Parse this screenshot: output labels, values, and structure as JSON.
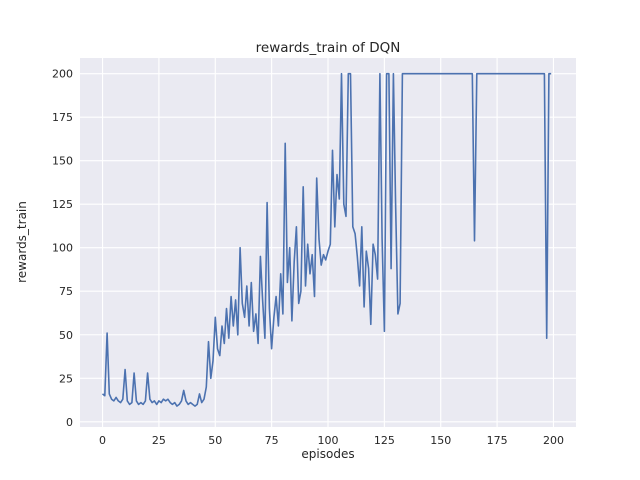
{
  "chart_data": {
    "type": "line",
    "title": "rewards_train of DQN",
    "xlabel": "episodes",
    "ylabel": "rewards_train",
    "x_start": 0,
    "x_step": 1,
    "x_ticks": [
      0,
      25,
      50,
      75,
      100,
      125,
      150,
      175,
      200
    ],
    "y_ticks": [
      0,
      25,
      50,
      75,
      100,
      125,
      150,
      175,
      200
    ],
    "xlim": [
      -10,
      210
    ],
    "ylim": [
      -3,
      209
    ],
    "grid": true,
    "legend": false,
    "style": "seaborn-darkgrid",
    "colors": {
      "line": "#4c72b0",
      "axes_bg": "#eaeaf2",
      "grid": "#ffffff",
      "fig_bg": "#ffffff",
      "text": "#262626"
    },
    "values": [
      16,
      15,
      51,
      16,
      13,
      12,
      14,
      12,
      11,
      13,
      30,
      12,
      10,
      11,
      28,
      12,
      10,
      11,
      10,
      12,
      28,
      13,
      11,
      12,
      10,
      12,
      11,
      13,
      12,
      13,
      11,
      10,
      11,
      9,
      10,
      12,
      18,
      12,
      10,
      11,
      10,
      9,
      10,
      16,
      11,
      13,
      20,
      46,
      25,
      35,
      60,
      42,
      38,
      55,
      45,
      65,
      48,
      72,
      55,
      70,
      50,
      100,
      68,
      60,
      78,
      55,
      80,
      52,
      62,
      45,
      95,
      70,
      48,
      126,
      65,
      42,
      60,
      72,
      55,
      85,
      62,
      160,
      80,
      100,
      58,
      92,
      112,
      68,
      75,
      135,
      78,
      102,
      85,
      96,
      72,
      140,
      105,
      90,
      96,
      93,
      98,
      102,
      156,
      112,
      142,
      128,
      200,
      125,
      118,
      200,
      200,
      112,
      108,
      95,
      78,
      112,
      66,
      98,
      88,
      56,
      102,
      96,
      82,
      200,
      105,
      52,
      200,
      200,
      88,
      200,
      125,
      62,
      68,
      200,
      200,
      200,
      200,
      200,
      200,
      200,
      200,
      200,
      200,
      200,
      200,
      200,
      200,
      200,
      200,
      200,
      200,
      200,
      200,
      200,
      200,
      200,
      200,
      200,
      200,
      200,
      200,
      200,
      200,
      200,
      200,
      104,
      200,
      200,
      200,
      200,
      200,
      200,
      200,
      200,
      200,
      200,
      200,
      200,
      200,
      200,
      200,
      200,
      200,
      200,
      200,
      200,
      200,
      200,
      200,
      200,
      200,
      200,
      200,
      200,
      200,
      200,
      200,
      48,
      200,
      200
    ]
  }
}
